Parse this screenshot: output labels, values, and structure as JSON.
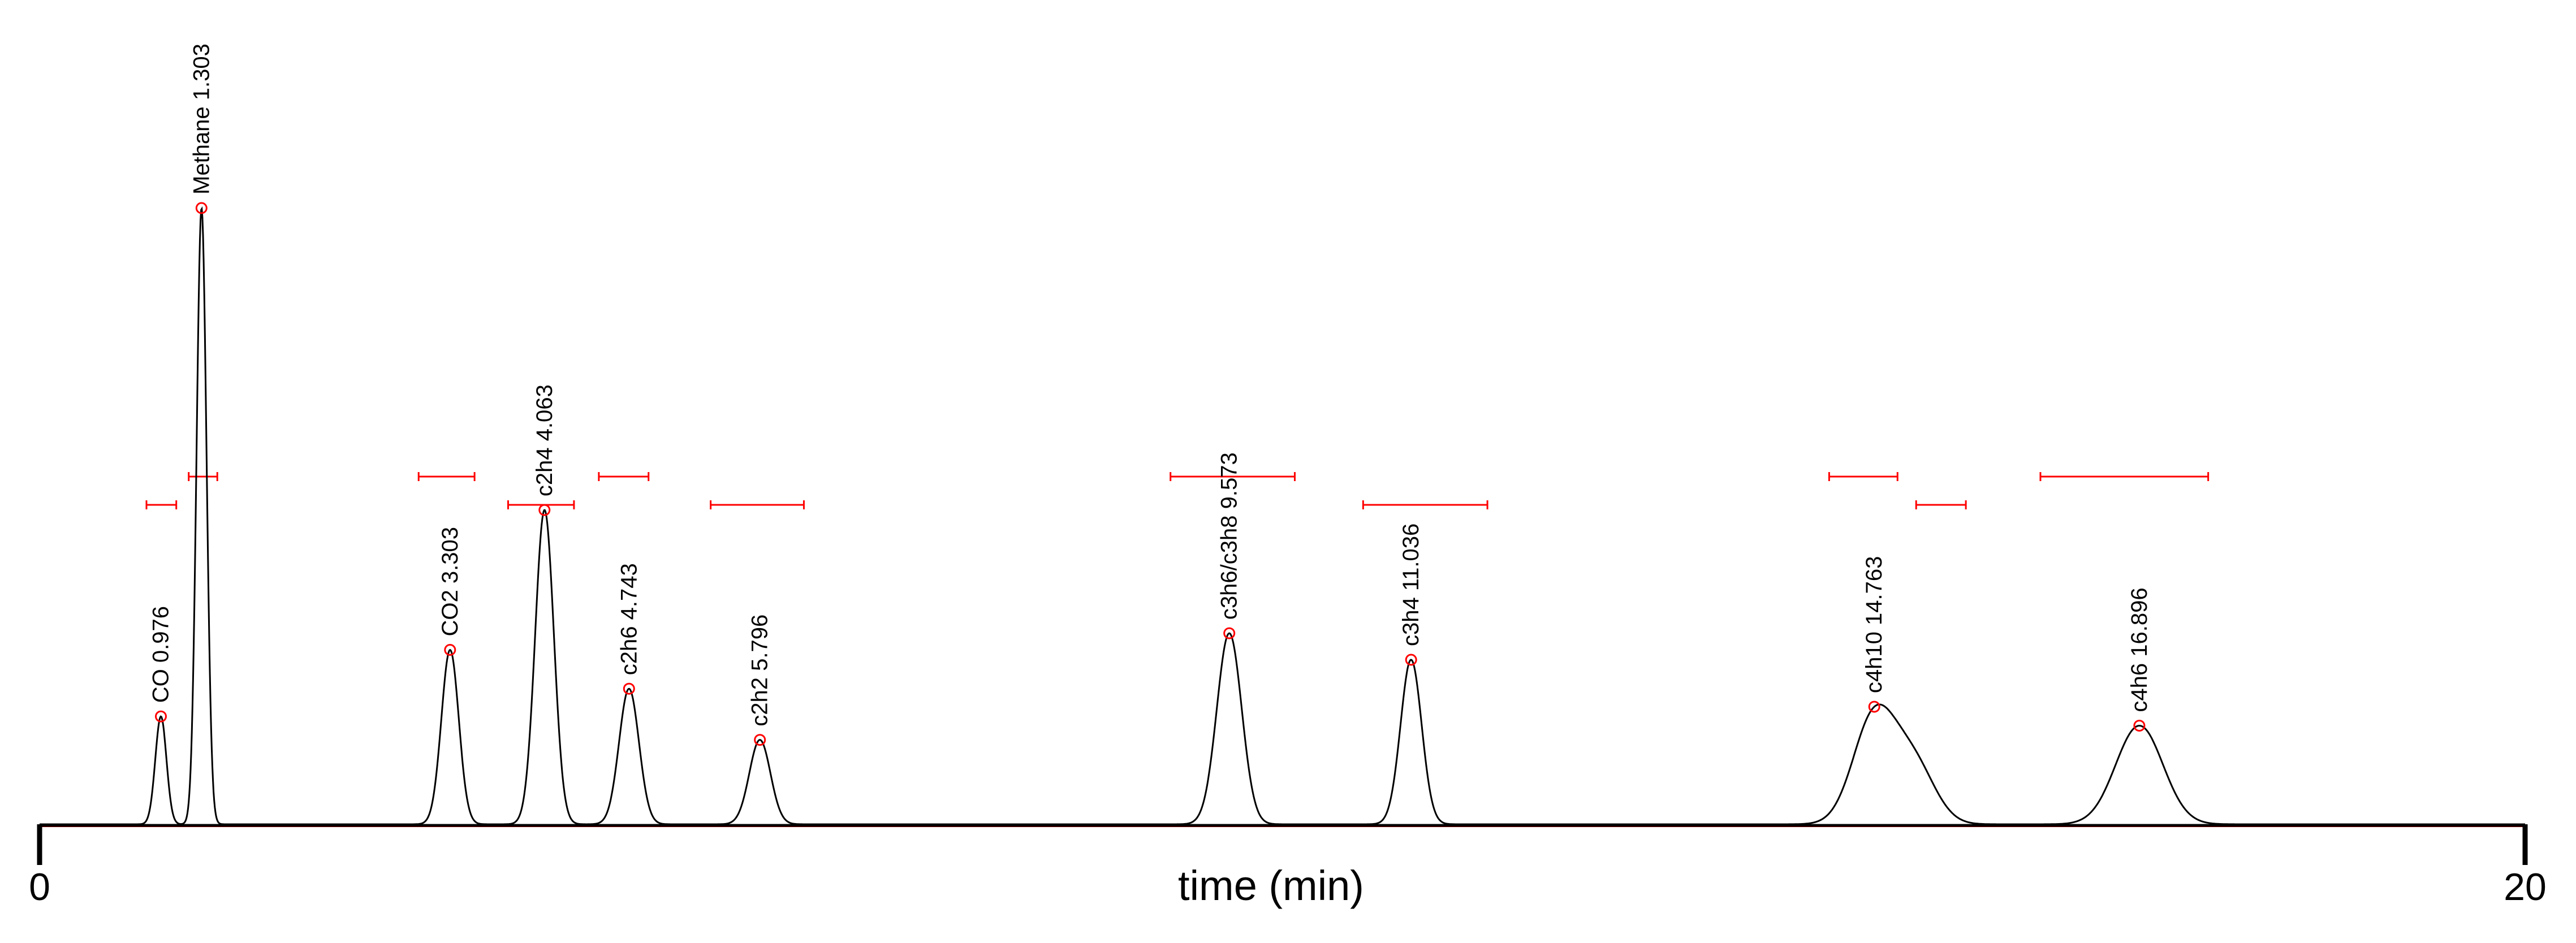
{
  "chart_data": {
    "type": "line",
    "title": "",
    "xlabel": "time (min)",
    "ylabel": "",
    "xlim": [
      0,
      20
    ],
    "x_ticks": [
      "0",
      "20"
    ],
    "grid": false,
    "legend": "none",
    "colors": {
      "signal": "#000000",
      "baseline": "#3050ff",
      "marker": "#ff0000"
    },
    "peaks": [
      {
        "label": "CO 0.976",
        "time": 0.976,
        "height": 0.175,
        "sigma": 0.045,
        "integration_window": [
          0.86,
          1.1
        ],
        "window_level": "low"
      },
      {
        "label": "Methane 1.303",
        "time": 1.303,
        "height": 1.0,
        "sigma": 0.04,
        "integration_window": [
          1.2,
          1.43
        ],
        "window_level": "high"
      },
      {
        "label": "CO2 3.303",
        "time": 3.303,
        "height": 0.283,
        "sigma": 0.07,
        "integration_window": [
          3.05,
          3.5
        ],
        "window_level": "high"
      },
      {
        "label": "c2h4 4.063",
        "time": 4.063,
        "height": 0.51,
        "sigma": 0.075,
        "integration_window": [
          3.77,
          4.3
        ],
        "window_level": "low"
      },
      {
        "label": "c2h6 4.743",
        "time": 4.743,
        "height": 0.22,
        "sigma": 0.08,
        "integration_window": [
          4.5,
          4.9
        ],
        "window_level": "high"
      },
      {
        "label": "c2h2 5.796",
        "time": 5.796,
        "height": 0.137,
        "sigma": 0.085,
        "integration_window": [
          5.4,
          6.15
        ],
        "window_level": "low"
      },
      {
        "label": "c3h6/c3h8 9.573",
        "time": 9.573,
        "height": 0.31,
        "sigma": 0.1,
        "integration_window": [
          9.1,
          10.1
        ],
        "window_level": "high"
      },
      {
        "label": "c3h4 11.036",
        "time": 11.036,
        "height": 0.267,
        "sigma": 0.085,
        "integration_window": [
          10.65,
          11.65
        ],
        "window_level": "low"
      },
      {
        "label": "c4h10 14.763",
        "time": 14.763,
        "height": 0.174,
        "sigma": 0.17,
        "integration_window": [
          14.4,
          14.95
        ],
        "window_level": "high"
      },
      {
        "label": "c4h6 16.896",
        "time": 16.896,
        "height": 0.16,
        "sigma": 0.19,
        "integration_window": [
          16.1,
          17.45
        ],
        "window_level": "high"
      }
    ],
    "extra_window": [
      15.1,
      15.5
    ],
    "shoulder": {
      "time": 15.08,
      "height": 0.095,
      "sigma": 0.17
    }
  }
}
